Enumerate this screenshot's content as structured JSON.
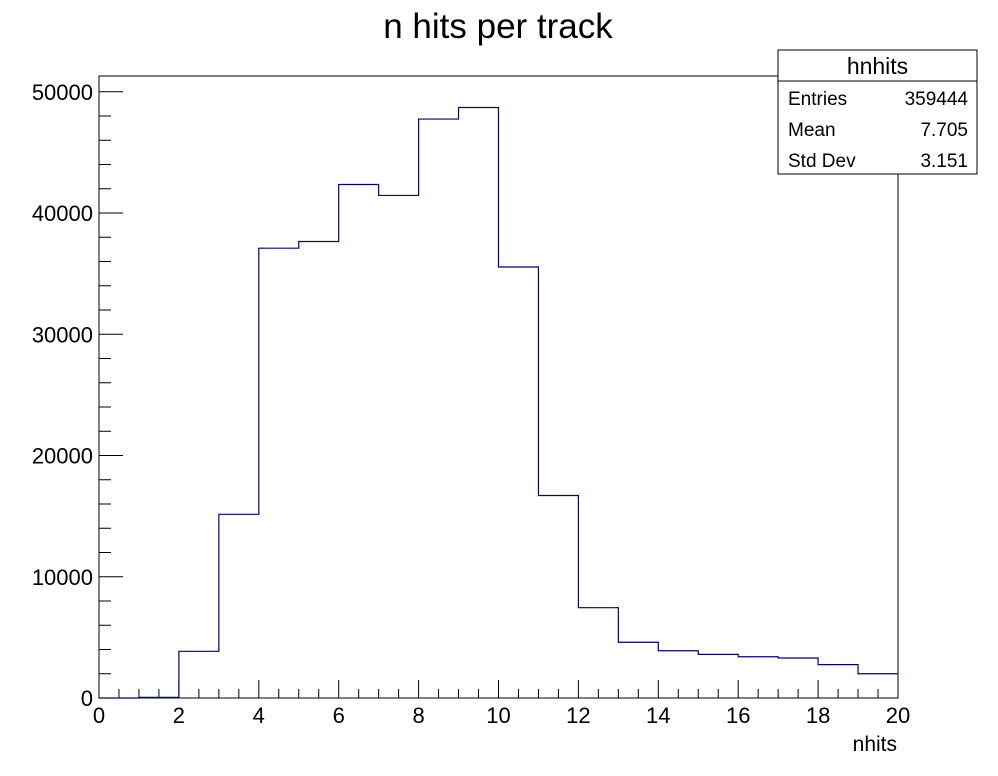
{
  "chart_data": {
    "type": "bar",
    "title": "n hits per track",
    "xlabel": "nhits",
    "ylabel": "",
    "xlim": [
      0,
      20
    ],
    "ylim": [
      0,
      51300
    ],
    "bin_edges": [
      0,
      1,
      2,
      3,
      4,
      5,
      6,
      7,
      8,
      9,
      10,
      11,
      12,
      13,
      14,
      15,
      16,
      17,
      18,
      19,
      20
    ],
    "values": [
      0,
      50,
      3850,
      15150,
      37100,
      37650,
      42350,
      41450,
      47750,
      48700,
      35550,
      16700,
      7450,
      4600,
      3900,
      3600,
      3400,
      3300,
      2750,
      2000
    ],
    "line_color": "#000080",
    "x_ticks": [
      "0",
      "2",
      "4",
      "6",
      "8",
      "10",
      "12",
      "14",
      "16",
      "18",
      "20"
    ],
    "y_ticks": [
      "0",
      "10000",
      "20000",
      "30000",
      "40000",
      "50000"
    ],
    "grid": false,
    "stats_box": {
      "name": "hnhits",
      "placement": "top-right",
      "rows": [
        {
          "label": "Entries",
          "value": "359444"
        },
        {
          "label": "Mean",
          "value": "7.705"
        },
        {
          "label": "Std Dev",
          "value": "3.151"
        }
      ]
    }
  }
}
